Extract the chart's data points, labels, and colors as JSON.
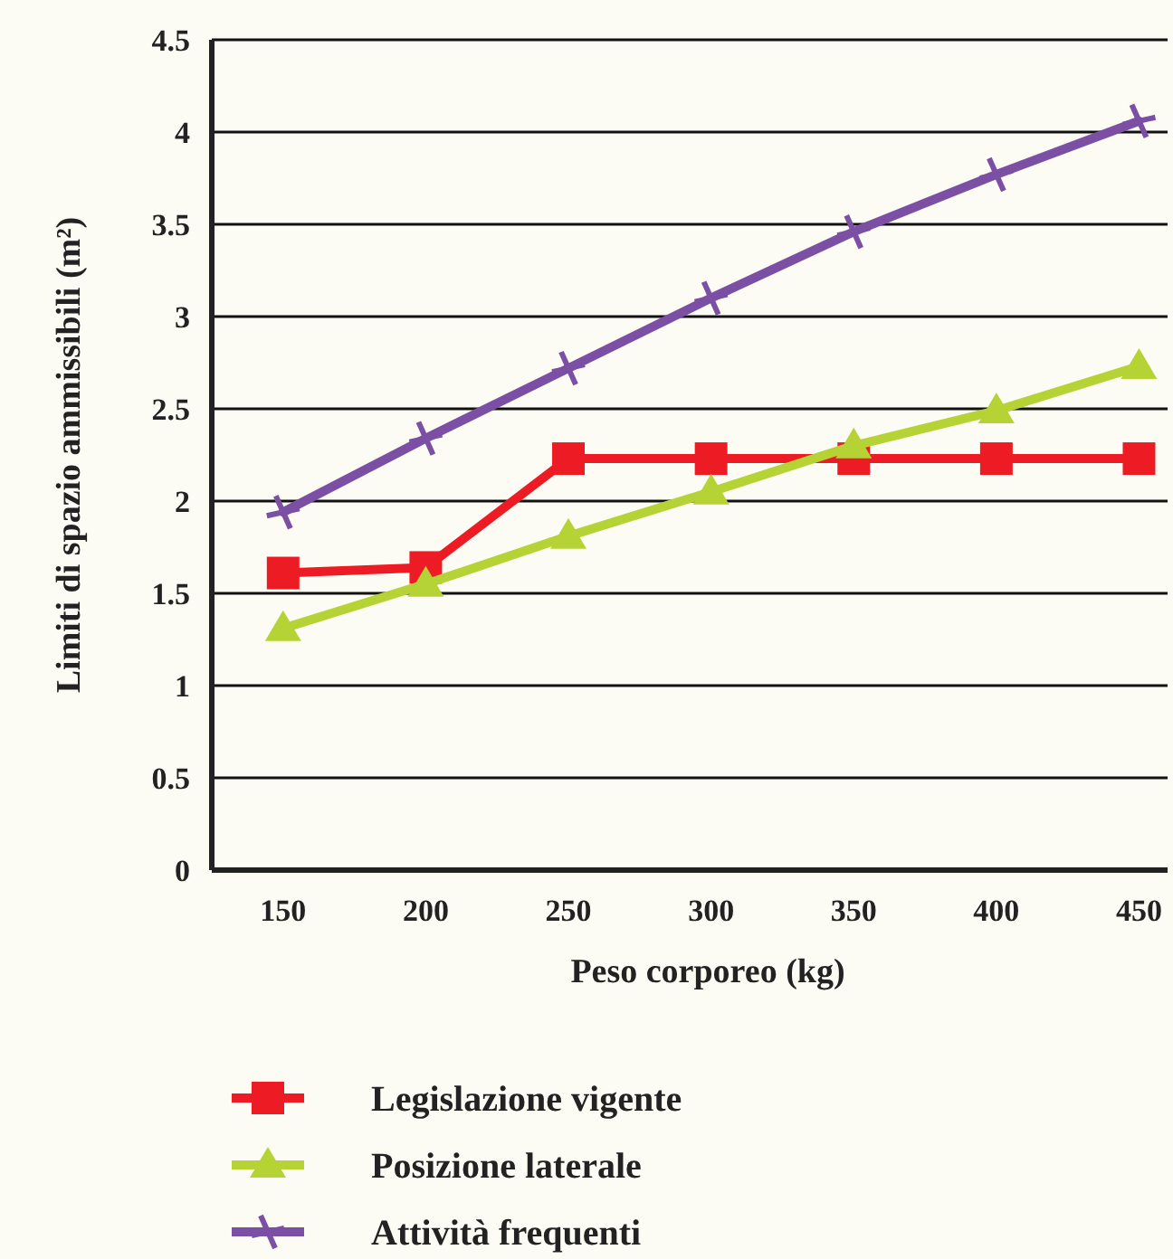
{
  "chart_data": {
    "type": "line",
    "xlabel": "Peso corporeo  (kg)",
    "ylabel": "Limiti di spazio ammissibili  (m²)",
    "x": [
      150,
      200,
      250,
      300,
      350,
      400,
      450
    ],
    "series": [
      {
        "name": "Legislazione vigente",
        "color": "#ed1c24",
        "marker": "square",
        "values": [
          1.61,
          1.64,
          2.23,
          2.23,
          2.23,
          2.23,
          2.23
        ]
      },
      {
        "name": "Posizione laterale",
        "color": "#b5d334",
        "marker": "triangle",
        "values": [
          1.31,
          1.55,
          1.81,
          2.05,
          2.3,
          2.49,
          2.73
        ]
      },
      {
        "name": "Attività frequenti",
        "color": "#7b4fa3",
        "marker": "cross",
        "values": [
          1.94,
          2.34,
          2.72,
          3.1,
          3.46,
          3.77,
          4.06
        ]
      }
    ],
    "xlim": [
      125,
      460
    ],
    "xticks": [
      150,
      200,
      250,
      300,
      350,
      400,
      450
    ],
    "ylim": [
      0,
      4.5
    ],
    "yticks": [
      0,
      {
        "value": 0.5,
        "label": "0.5"
      },
      1,
      {
        "value": 1.5,
        "label": "1.5"
      },
      2,
      {
        "value": 2.5,
        "label": "2.5"
      },
      3,
      {
        "value": 3.5,
        "label": "3.5"
      },
      4,
      {
        "value": 4.5,
        "label": "4.5"
      }
    ],
    "grid": "y",
    "legend": "bottom",
    "line_style": "solid"
  }
}
